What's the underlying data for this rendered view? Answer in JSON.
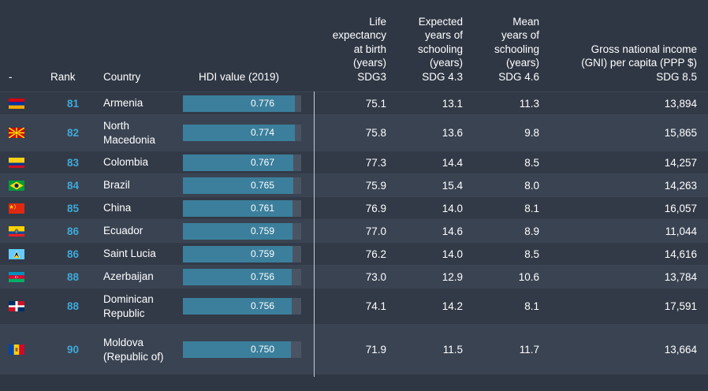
{
  "headers": {
    "flag": "-",
    "rank": "Rank",
    "country": "Country",
    "hdi": "HDI value (2019)",
    "life": [
      "Life",
      "expectancy",
      "at birth",
      "(years)",
      "SDG3"
    ],
    "expected": [
      "Expected",
      "years of",
      "schooling",
      "(years)",
      "SDG 4.3"
    ],
    "mean": [
      "Mean",
      "years of",
      "schooling",
      "(years)",
      "SDG 4.6"
    ],
    "gni": [
      "Gross national income",
      "(GNI) per capita (PPP $)",
      "SDG 8.5"
    ]
  },
  "hdi_scale": {
    "min": 0.0,
    "max": 0.82
  },
  "rows": [
    {
      "flag": "armenia-flag-icon",
      "rank": "81",
      "country": "Armenia",
      "hdi": "0.776",
      "hdi_value": 0.776,
      "life": "75.1",
      "expected": "13.1",
      "mean": "11.3",
      "gni": "13,894",
      "lines": 1
    },
    {
      "flag": "north-macedonia-flag-icon",
      "rank": "82",
      "country": "North Macedonia",
      "hdi": "0.774",
      "hdi_value": 0.774,
      "life": "75.8",
      "expected": "13.6",
      "mean": "9.8",
      "gni": "15,865",
      "lines": 2
    },
    {
      "flag": "colombia-flag-icon",
      "rank": "83",
      "country": "Colombia",
      "hdi": "0.767",
      "hdi_value": 0.767,
      "life": "77.3",
      "expected": "14.4",
      "mean": "8.5",
      "gni": "14,257",
      "lines": 1
    },
    {
      "flag": "brazil-flag-icon",
      "rank": "84",
      "country": "Brazil",
      "hdi": "0.765",
      "hdi_value": 0.765,
      "life": "75.9",
      "expected": "15.4",
      "mean": "8.0",
      "gni": "14,263",
      "lines": 1
    },
    {
      "flag": "china-flag-icon",
      "rank": "85",
      "country": "China",
      "hdi": "0.761",
      "hdi_value": 0.761,
      "life": "76.9",
      "expected": "14.0",
      "mean": "8.1",
      "gni": "16,057",
      "lines": 1
    },
    {
      "flag": "ecuador-flag-icon",
      "rank": "86",
      "country": "Ecuador",
      "hdi": "0.759",
      "hdi_value": 0.759,
      "life": "77.0",
      "expected": "14.6",
      "mean": "8.9",
      "gni": "11,044",
      "lines": 1
    },
    {
      "flag": "saint-lucia-flag-icon",
      "rank": "86",
      "country": "Saint Lucia",
      "hdi": "0.759",
      "hdi_value": 0.759,
      "life": "76.2",
      "expected": "14.0",
      "mean": "8.5",
      "gni": "14,616",
      "lines": 1
    },
    {
      "flag": "azerbaijan-flag-icon",
      "rank": "88",
      "country": "Azerbaijan",
      "hdi": "0.756",
      "hdi_value": 0.756,
      "life": "73.0",
      "expected": "12.9",
      "mean": "10.6",
      "gni": "13,784",
      "lines": 1
    },
    {
      "flag": "dominican-republic-flag-icon",
      "rank": "88",
      "country": "Dominican Republic",
      "hdi": "0.756",
      "hdi_value": 0.756,
      "life": "74.1",
      "expected": "14.2",
      "mean": "8.1",
      "gni": "17,591",
      "lines": 2
    },
    {
      "flag": "moldova-flag-icon",
      "rank": "90",
      "country": "Moldova (Republic of)",
      "hdi": "0.750",
      "hdi_value": 0.75,
      "life": "71.9",
      "expected": "11.5",
      "mean": "11.7",
      "gni": "13,664",
      "lines": 3
    }
  ],
  "colors": {
    "background": "#2f3744",
    "row_alt": "#3a4352",
    "rank": "#3fa9d8",
    "bar_fill": "#3b7f9c",
    "bar_bg": "#4a5463"
  }
}
